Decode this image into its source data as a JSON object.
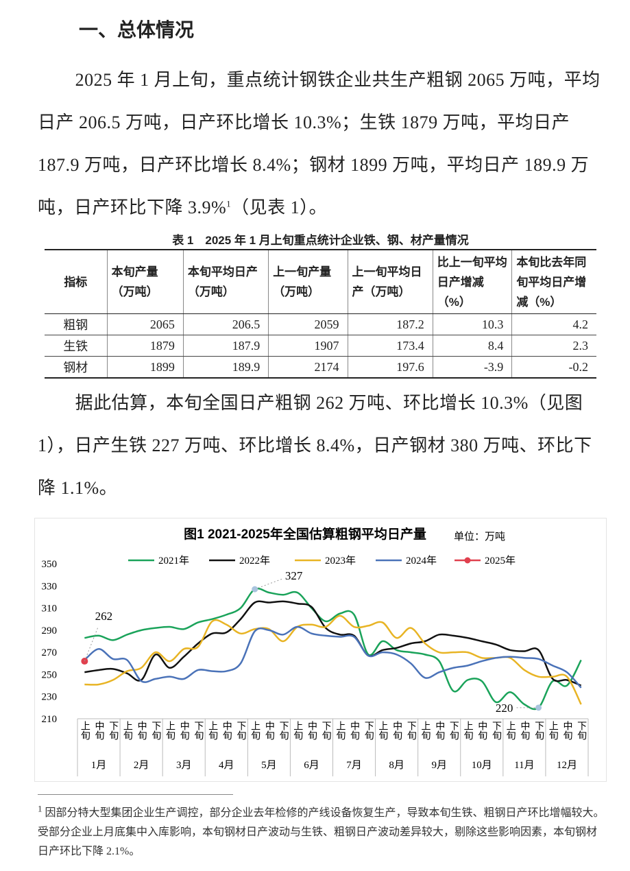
{
  "heading": "一、总体情况",
  "paragraphs": [
    {
      "text": "2025 年 1 月上旬，重点统计钢铁企业共生产粗钢 2065 万吨，平均日产 206.5 万吨，日产环比增长 10.3%；生铁 1879 万吨，平均日产 187.9 万吨，日产环比增长 8.4%；钢材 1899 万吨，平均日产 189.9 万吨，日产环比下降 3.9%",
      "note": "1",
      "tail": "（见表 1）。"
    },
    {
      "text": "据此估算，本旬全国日产粗钢 262 万吨、环比增长 10.3%（见图 1），日产生铁 227 万吨、环比增长 8.4%，日产钢材 380 万吨、环比下降 1.1%。"
    }
  ],
  "table": {
    "caption": "表 1　2025 年 1 月上旬重点统计企业铁、钢、材产量情况",
    "header": [
      "指标",
      "本旬产量（万吨）",
      "本旬平均日产（万吨）",
      "上一旬产量（万吨）",
      "上一旬平均日产（万吨）",
      "比上一旬平均日产增减（%）",
      "本旬比去年同旬平均日产增减（%）"
    ],
    "rows": [
      [
        "粗钢",
        2065,
        206.5,
        2059,
        187.2,
        10.3,
        4.2
      ],
      [
        "生铁",
        1879,
        187.9,
        1907,
        173.4,
        8.4,
        2.3
      ],
      [
        "钢材",
        1899,
        189.9,
        2174,
        197.6,
        -3.9,
        -0.2
      ]
    ]
  },
  "chart_data": {
    "type": "line",
    "title": "图1  2021-2025年全国估算粗钢平均日产量",
    "unit": "单位：万吨",
    "categories": [
      "上旬",
      "中旬",
      "下旬",
      "上旬",
      "中旬",
      "下旬",
      "上旬",
      "中旬",
      "下旬",
      "上旬",
      "中旬",
      "下旬",
      "上旬",
      "中旬",
      "下旬",
      "上旬",
      "中旬",
      "下旬",
      "上旬",
      "中旬",
      "下旬",
      "上旬",
      "中旬",
      "下旬",
      "上旬",
      "中旬",
      "下旬",
      "上旬",
      "中旬",
      "下旬",
      "上旬",
      "中旬",
      "下旬",
      "上旬",
      "中旬",
      "下旬"
    ],
    "months": [
      "1月",
      "2月",
      "3月",
      "4月",
      "5月",
      "6月",
      "7月",
      "8月",
      "9月",
      "10月",
      "11月",
      "12月"
    ],
    "ylim": [
      210,
      350
    ],
    "yticks": [
      210,
      230,
      250,
      270,
      290,
      310,
      330,
      350
    ],
    "grid": false,
    "series": [
      {
        "name": "2021年",
        "color": "#1aa35a",
        "values": [
          283,
          285,
          281,
          286,
          290,
          292,
          293,
          291,
          297,
          300,
          304,
          310,
          327,
          324,
          322,
          324,
          310,
          298,
          305,
          304,
          268,
          280,
          272,
          270,
          268,
          262,
          235,
          245,
          244,
          225,
          234,
          223,
          220,
          244,
          240,
          263
        ],
        "value_labels": [
          null,
          null,
          null,
          null,
          null,
          null,
          null,
          null,
          null,
          null,
          null,
          null,
          "327",
          null,
          null,
          null,
          null,
          null,
          null,
          null,
          null,
          null,
          null,
          null,
          null,
          null,
          null,
          null,
          null,
          null,
          null,
          null,
          "220",
          null,
          null,
          null
        ]
      },
      {
        "name": "2022年",
        "color": "#111111",
        "values": [
          252,
          254,
          255,
          251,
          245,
          268,
          256,
          266,
          278,
          287,
          288,
          300,
          315,
          315,
          316,
          314,
          311,
          292,
          286,
          285,
          267,
          272,
          274,
          278,
          280,
          286,
          285,
          283,
          280,
          277,
          272,
          271,
          272,
          246,
          245,
          240
        ]
      },
      {
        "name": "2023年",
        "color": "#e8b424",
        "values": [
          241,
          241,
          245,
          253,
          256,
          270,
          262,
          273,
          275,
          298,
          295,
          287,
          291,
          291,
          280,
          293,
          295,
          293,
          303,
          293,
          294,
          297,
          283,
          292,
          278,
          270,
          270,
          270,
          265,
          265,
          265,
          254,
          248,
          248,
          248,
          223
        ]
      },
      {
        "name": "2024年",
        "color": "#4a72b8",
        "values": [
          263,
          273,
          264,
          263,
          244,
          246,
          248,
          246,
          254,
          253,
          253,
          260,
          289,
          290,
          286,
          293,
          287,
          285,
          284,
          284,
          267,
          270,
          268,
          260,
          247,
          252,
          256,
          258,
          262,
          265,
          266,
          265,
          264,
          258,
          252,
          238
        ]
      },
      {
        "name": "2025年",
        "color": "#e0404e",
        "values": [
          262,
          null,
          null,
          null,
          null,
          null,
          null,
          null,
          null,
          null,
          null,
          null,
          null,
          null,
          null,
          null,
          null,
          null,
          null,
          null,
          null,
          null,
          null,
          null,
          null,
          null,
          null,
          null,
          null,
          null,
          null,
          null,
          null,
          null,
          null,
          null
        ],
        "value_labels": [
          "262",
          null,
          null,
          null,
          null,
          null,
          null,
          null,
          null,
          null,
          null,
          null,
          null,
          null,
          null,
          null,
          null,
          null,
          null,
          null,
          null,
          null,
          null,
          null,
          null,
          null,
          null,
          null,
          null,
          null,
          null,
          null,
          null,
          null,
          null,
          null
        ]
      }
    ]
  },
  "footnote": {
    "marker": "1",
    "text": "因部分特大型集团企业生产调控，部分企业去年检修的产线设备恢复生产，导致本旬生铁、粗钢日产环比增幅较大。受部分企业上月底集中入库影响，本旬钢材日产波动与生铁、粗钢日产波动差异较大，剔除这些影响因素，本旬钢材日产环比下降 2.1%。"
  }
}
